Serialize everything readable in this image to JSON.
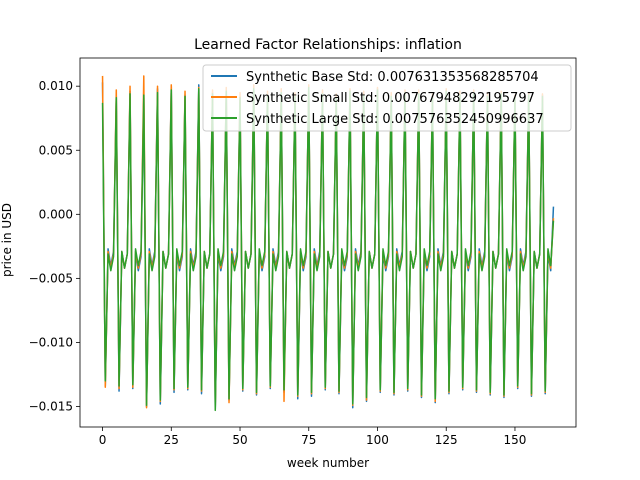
{
  "chart_data": {
    "type": "line",
    "title": "Learned Factor Relationships: inflation",
    "xlabel": "week number",
    "ylabel": "price in USD",
    "xlim": [
      -8.2,
      172.2
    ],
    "ylim": [
      -0.0166,
      0.0122
    ],
    "xticks": [
      0,
      25,
      50,
      75,
      100,
      125,
      150
    ],
    "xtick_labels": [
      "0",
      "25",
      "50",
      "75",
      "100",
      "125",
      "150"
    ],
    "yticks": [
      -0.015,
      -0.01,
      -0.005,
      0.0,
      0.005,
      0.01
    ],
    "ytick_labels": [
      "−0.015",
      "−0.010",
      "−0.005",
      "0.000",
      "0.005",
      "0.010"
    ],
    "grid": false,
    "legend_position": "top-right",
    "period_weeks": 5,
    "x_range": [
      0,
      164
    ],
    "cycle_pattern_description_values": {
      "phase_values": [
        0.009,
        -0.0133,
        -0.0029,
        -0.0042,
        -0.0031
      ]
    },
    "series": [
      {
        "name": "Synthetic Base Std: 0.007631353568285704",
        "color": "#1f77b4",
        "peak_values": [
          0.0103,
          0.0092,
          0.0096,
          0.0091,
          0.0098,
          0.01,
          0.0093,
          0.0101,
          0.0095,
          0.0097,
          0.0092,
          0.0099,
          0.0094,
          0.0096,
          0.0093,
          0.01,
          0.0095,
          0.0092,
          0.0097,
          0.0094,
          0.0098,
          0.0093,
          0.0096,
          0.0095,
          0.0092,
          0.0097,
          0.0094,
          0.0096,
          0.0093,
          0.0095,
          0.0092,
          0.0094,
          0.0093
        ],
        "trough_values": [
          -0.0134,
          -0.0138,
          -0.0136,
          -0.015,
          -0.0148,
          -0.0139,
          -0.0137,
          -0.014,
          -0.0152,
          -0.0145,
          -0.0138,
          -0.0141,
          -0.0136,
          -0.0139,
          -0.0144,
          -0.0142,
          -0.0137,
          -0.014,
          -0.0151,
          -0.0146,
          -0.0139,
          -0.0141,
          -0.0138,
          -0.0143,
          -0.0147,
          -0.014,
          -0.0137,
          -0.0139,
          -0.0141,
          -0.0143,
          -0.0136,
          -0.0142,
          -0.014
        ],
        "end_value": 0.0006
      },
      {
        "name": "Synthetic Small Std: 0.00767948292195797",
        "color": "#ff7f0e",
        "peak_values": [
          0.0108,
          0.0097,
          0.01,
          0.0108,
          0.01,
          0.0101,
          0.0096,
          0.0099,
          0.0097,
          0.0099,
          0.0095,
          0.0101,
          0.0096,
          0.0098,
          0.0095,
          0.0101,
          0.0097,
          0.0094,
          0.0098,
          0.0096,
          0.0099,
          0.0095,
          0.0097,
          0.0097,
          0.0094,
          0.0098,
          0.0096,
          0.0097,
          0.0095,
          0.0096,
          0.0093,
          0.0095,
          0.0094
        ],
        "trough_values": [
          -0.0135,
          -0.0136,
          -0.0135,
          -0.0151,
          -0.0146,
          -0.0137,
          -0.0136,
          -0.0138,
          -0.015,
          -0.0147,
          -0.0137,
          -0.014,
          -0.0135,
          -0.0146,
          -0.0142,
          -0.014,
          -0.0136,
          -0.0139,
          -0.0149,
          -0.0145,
          -0.0138,
          -0.014,
          -0.0137,
          -0.0142,
          -0.0146,
          -0.0139,
          -0.0136,
          -0.0138,
          -0.014,
          -0.0142,
          -0.0135,
          -0.0141,
          -0.0139
        ],
        "end_value": -0.0003
      },
      {
        "name": "Synthetic Large Std: 0.007576352450996637",
        "color": "#2ca02c",
        "peak_values": [
          0.0087,
          0.0091,
          0.0094,
          0.0093,
          0.0095,
          0.0097,
          0.0092,
          0.0098,
          0.0094,
          0.0096,
          0.0091,
          0.0098,
          0.0093,
          0.0095,
          0.0092,
          0.0099,
          0.0094,
          0.0091,
          0.0096,
          0.0093,
          0.0097,
          0.0092,
          0.0095,
          0.0094,
          0.0091,
          0.0096,
          0.0093,
          0.0095,
          0.0092,
          0.0094,
          0.0091,
          0.0093,
          0.0092
        ],
        "trough_values": [
          -0.013,
          -0.0134,
          -0.0133,
          -0.0149,
          -0.0145,
          -0.0136,
          -0.0135,
          -0.0137,
          -0.0153,
          -0.0144,
          -0.0136,
          -0.0139,
          -0.0134,
          -0.0137,
          -0.0141,
          -0.0139,
          -0.0135,
          -0.0138,
          -0.0148,
          -0.0143,
          -0.0137,
          -0.0139,
          -0.0136,
          -0.0141,
          -0.0144,
          -0.0138,
          -0.0135,
          -0.0137,
          -0.0139,
          -0.0141,
          -0.0134,
          -0.014,
          -0.0138
        ],
        "end_value": -0.0005
      }
    ]
  }
}
